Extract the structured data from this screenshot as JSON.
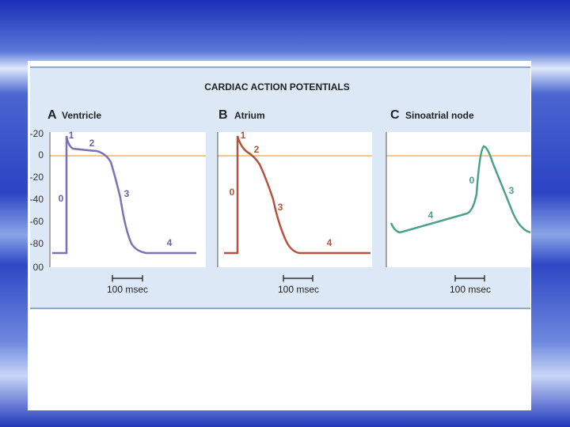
{
  "title": "CARDIAC ACTION POTENTIALS",
  "y_axis_labels": [
    "-20",
    "0",
    "-20",
    "-40",
    "-60",
    "-80",
    "00"
  ],
  "panels": [
    {
      "letter": "A",
      "label": "Ventricle",
      "phases": [
        "0",
        "1",
        "2",
        "3",
        "4"
      ],
      "scale_bar": "100 msec"
    },
    {
      "letter": "B",
      "label": "Atrium",
      "phases": [
        "0",
        "1",
        "2",
        "3",
        "4"
      ],
      "scale_bar": "100 msec"
    },
    {
      "letter": "C",
      "label": "Sinoatrial node",
      "phases": [
        "0",
        "3",
        "4"
      ],
      "scale_bar": "100 msec"
    }
  ]
}
